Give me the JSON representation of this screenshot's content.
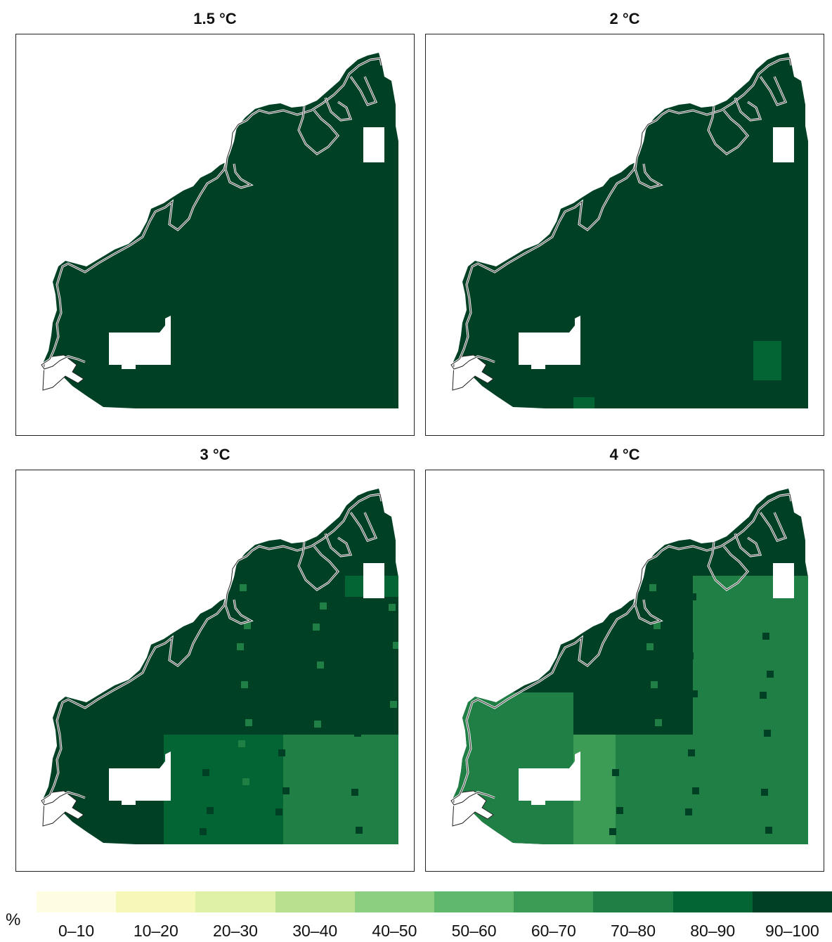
{
  "panels": [
    {
      "title": "1.5 °C",
      "warming_level": 1.5
    },
    {
      "title": "2 °C",
      "warming_level": 2
    },
    {
      "title": "3 °C",
      "warming_level": 3
    },
    {
      "title": "4 °C",
      "warming_level": 4
    }
  ],
  "legend": {
    "unit": "%",
    "classes": [
      {
        "label": "0–10",
        "color": "#fffde1"
      },
      {
        "label": "10–20",
        "color": "#f6f8b8"
      },
      {
        "label": "20–30",
        "color": "#dff0a7"
      },
      {
        "label": "30–40",
        "color": "#b8e08f"
      },
      {
        "label": "40–50",
        "color": "#8ccf80"
      },
      {
        "label": "50–60",
        "color": "#5fb86c"
      },
      {
        "label": "60–70",
        "color": "#3c9b55"
      },
      {
        "label": "70–80",
        "color": "#1f7f44"
      },
      {
        "label": "80–90",
        "color": "#036434"
      },
      {
        "label": "90–100",
        "color": "#004125"
      }
    ]
  }
}
